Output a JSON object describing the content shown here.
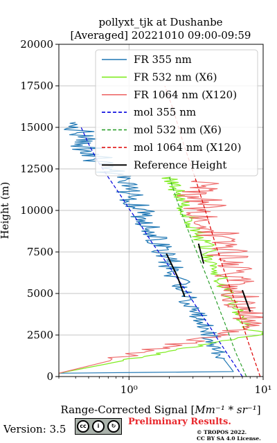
{
  "chart_data": {
    "type": "line",
    "title_line1": "pollyxt_tjk at Dushanbe",
    "title_line2": "[Averaged] 20221010 09:00-09:59",
    "xlabel_text": "Range-Corrected Signal [",
    "xlabel_math": "Mm⁻¹ * sr⁻¹",
    "xlabel_close": "]",
    "ylabel": "Height (m)",
    "xscale": "log",
    "xlim": [
      0.3,
      10
    ],
    "ylim": [
      0,
      20000
    ],
    "x_ticks": [
      {
        "value": 1,
        "label": "10⁰"
      },
      {
        "value": 10,
        "label": "10¹"
      }
    ],
    "y_ticks": [
      0,
      2500,
      5000,
      7500,
      10000,
      12500,
      15000,
      17500,
      20000
    ],
    "y_tick_labels": [
      "0",
      "2500",
      "5000",
      "7500",
      "10000",
      "12500",
      "15000",
      "17500",
      "20000"
    ],
    "grid": true,
    "legend_position": "top-right",
    "series": [
      {
        "name": "FR 355 nm",
        "color": "#1f77b4",
        "style": "solid",
        "noise": 0.06,
        "points": [
          [
            0.3,
            50
          ],
          [
            0.3,
            200
          ],
          [
            6,
            300
          ],
          [
            5.5,
            700
          ],
          [
            4.5,
            1600
          ],
          [
            3.8,
            2700
          ],
          [
            3.2,
            3800
          ],
          [
            2.7,
            4700
          ],
          [
            2.25,
            6000
          ],
          [
            1.9,
            7200
          ],
          [
            1.6,
            8500
          ],
          [
            1.35,
            9500
          ],
          [
            1.12,
            10500
          ],
          [
            0.95,
            11300
          ],
          [
            0.8,
            12000
          ],
          [
            0.62,
            12800
          ],
          [
            0.52,
            13500
          ],
          [
            0.45,
            14300
          ],
          [
            0.42,
            15000
          ],
          [
            0.4,
            15300
          ]
        ]
      },
      {
        "name": "FR 532 nm (X6)",
        "color": "#7fec1f",
        "style": "solid",
        "noise": 0.04,
        "points": [
          [
            0.3,
            50
          ],
          [
            0.3,
            200
          ],
          [
            10,
            2600
          ],
          [
            8,
            2800
          ],
          [
            7,
            3300
          ],
          [
            6.5,
            3800
          ],
          [
            5.8,
            4600
          ],
          [
            5,
            5500
          ],
          [
            4.3,
            6800
          ],
          [
            3.8,
            7800
          ],
          [
            3.2,
            8800
          ],
          [
            2.8,
            9700
          ],
          [
            2.45,
            10500
          ],
          [
            2.2,
            11500
          ],
          [
            2.05,
            12000
          ]
        ]
      },
      {
        "name": "FR 1064 nm (X120)",
        "color": "#ee6a6a",
        "style": "solid",
        "noise": 0.1,
        "points": [
          [
            0.3,
            50
          ],
          [
            0.3,
            200
          ],
          [
            10,
            3200
          ],
          [
            9,
            3300
          ],
          [
            8,
            3500
          ],
          [
            7,
            4200
          ],
          [
            6.5,
            5300
          ],
          [
            6,
            6300
          ],
          [
            5.5,
            7300
          ],
          [
            4.8,
            8200
          ],
          [
            4.2,
            9000
          ],
          [
            3.8,
            9800
          ],
          [
            3.5,
            10500
          ],
          [
            3.3,
            11000
          ],
          [
            3.2,
            11800
          ]
        ]
      },
      {
        "name": "mol 355 nm",
        "color": "#0000dd",
        "style": "dashed",
        "points": [
          [
            7,
            0
          ],
          [
            5.8,
            1000
          ],
          [
            4.8,
            2000
          ],
          [
            4,
            3000
          ],
          [
            3.3,
            4000
          ],
          [
            2.75,
            5000
          ],
          [
            2.25,
            6000
          ],
          [
            1.85,
            7000
          ],
          [
            1.5,
            8000
          ],
          [
            1.25,
            9000
          ],
          [
            1.02,
            10000
          ],
          [
            0.85,
            11000
          ],
          [
            0.7,
            12000
          ],
          [
            0.58,
            13000
          ],
          [
            0.5,
            14000
          ],
          [
            0.44,
            15000
          ]
        ]
      },
      {
        "name": "mol 532 nm (X6)",
        "color": "#2ca02c",
        "style": "dashed",
        "points": [
          [
            7.5,
            0
          ],
          [
            6.2,
            1500
          ],
          [
            5.3,
            3000
          ],
          [
            4.5,
            4500
          ],
          [
            3.8,
            6000
          ],
          [
            3.2,
            7500
          ],
          [
            2.7,
            9000
          ],
          [
            2.3,
            10500
          ],
          [
            2,
            12000
          ]
        ]
      },
      {
        "name": "mol 1064 nm (X120)",
        "color": "#dd0000",
        "style": "dashed",
        "points": [
          [
            9.5,
            0
          ],
          [
            7.8,
            2000
          ],
          [
            6.5,
            4000
          ],
          [
            5.3,
            6000
          ],
          [
            4.4,
            8000
          ],
          [
            3.7,
            10000
          ],
          [
            3.1,
            12000
          ],
          [
            2.55,
            14000
          ],
          [
            2.15,
            16000
          ],
          [
            1.85,
            17500
          ]
        ]
      },
      {
        "name": "Reference Height",
        "color": "#000000",
        "style": "solid",
        "width": 2,
        "segments": [
          [
            [
              1.9,
              7400
            ],
            [
              2.3,
              6000
            ],
            [
              2.6,
              4800
            ]
          ],
          [
            [
              3.3,
              8000
            ],
            [
              3.6,
              6800
            ]
          ],
          [
            [
              7,
              5200
            ],
            [
              8,
              3900
            ]
          ]
        ]
      }
    ]
  },
  "footer": {
    "version": "Version: 3.5",
    "license_badge_text": "BY SA",
    "preliminary": "Preliminary Results.",
    "copyright_line1": "© TROPOS 2022.",
    "copyright_line2": "CC BY SA 4.0 License."
  }
}
